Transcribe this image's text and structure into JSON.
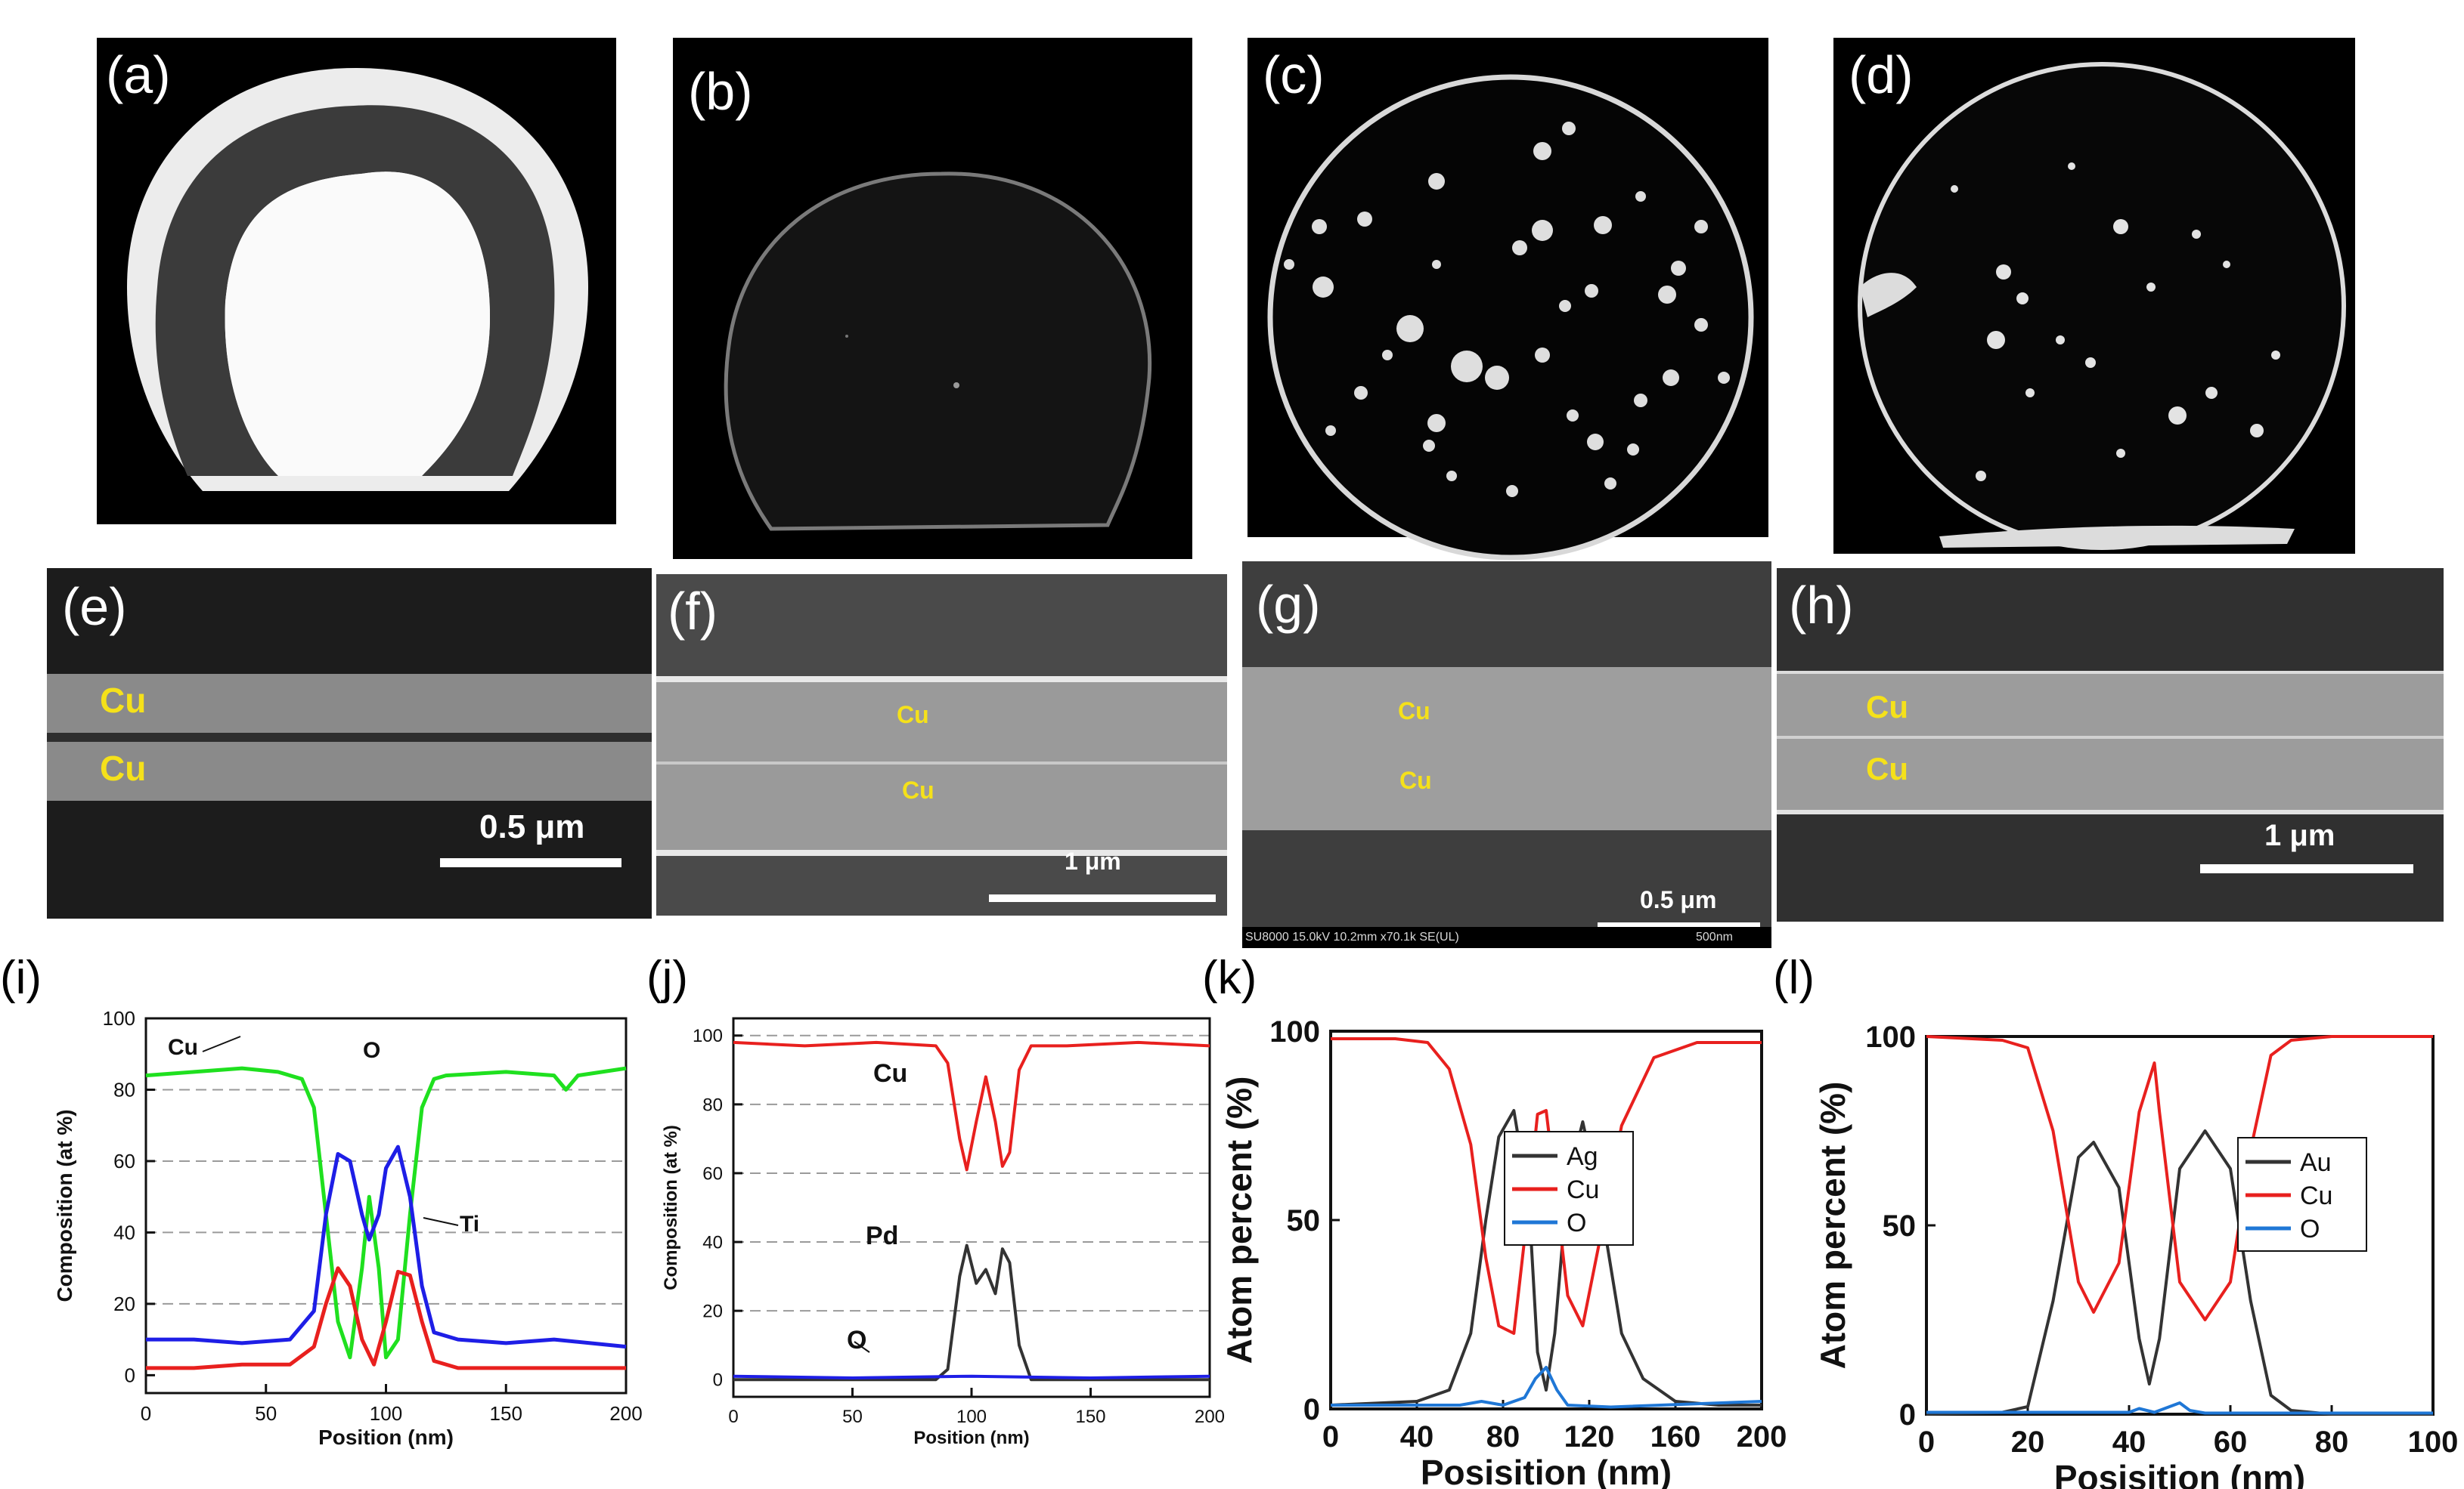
{
  "panels": {
    "a": {
      "label": "(a)"
    },
    "b": {
      "label": "(b)"
    },
    "c": {
      "label": "(c)"
    },
    "d": {
      "label": "(d)"
    },
    "e": {
      "label": "(e)",
      "cu_top": "Cu",
      "cu_bottom": "Cu",
      "scale": "0.5 μm"
    },
    "f": {
      "label": "(f)",
      "cu_top": "Cu",
      "cu_bottom": "Cu",
      "scale": "1 μm"
    },
    "g": {
      "label": "(g)",
      "cu_top": "Cu",
      "cu_bottom": "Cu",
      "scale": "0.5 μm",
      "footer_left": "SU8000 15.0kV 10.2mm x70.1k SE(UL)",
      "footer_right": "500nm"
    },
    "h": {
      "label": "(h)",
      "cu_top": "Cu",
      "cu_bottom": "Cu",
      "scale": "1 μm"
    },
    "i": {
      "label": "(i)"
    },
    "j": {
      "label": "(j)"
    },
    "k": {
      "label": "(k)"
    },
    "l": {
      "label": "(l)"
    }
  },
  "colors": {
    "cu_label": "#f5e11a",
    "red": "#e8201e",
    "green": "#1fe01f",
    "blue": "#1e1ee6",
    "black": "#333333",
    "lightblue": "#1f77d6"
  },
  "chart_data": [
    {
      "id": "i",
      "type": "line",
      "xlabel": "Position (nm)",
      "ylabel": "Composition (at %)",
      "xlim": [
        0,
        200
      ],
      "ylim": [
        -5,
        100
      ],
      "xticks": [
        0,
        50,
        100,
        150,
        200
      ],
      "yticks": [
        0,
        20,
        40,
        60,
        80,
        100
      ],
      "grid": "dashed horizontal",
      "annotations": [
        "Cu",
        "O",
        "Ti"
      ],
      "series": [
        {
          "name": "Cu",
          "color": "green",
          "x": [
            0,
            20,
            40,
            55,
            65,
            70,
            75,
            80,
            85,
            90,
            93,
            97,
            100,
            105,
            110,
            115,
            120,
            125,
            150,
            170,
            175,
            180,
            200
          ],
          "y": [
            84,
            85,
            86,
            85,
            83,
            75,
            45,
            15,
            5,
            30,
            50,
            30,
            5,
            10,
            45,
            75,
            83,
            84,
            85,
            84,
            80,
            84,
            86
          ]
        },
        {
          "name": "O",
          "color": "blue",
          "x": [
            0,
            20,
            40,
            60,
            70,
            75,
            80,
            85,
            90,
            93,
            97,
            100,
            105,
            110,
            115,
            120,
            130,
            150,
            170,
            200
          ],
          "y": [
            10,
            10,
            9,
            10,
            18,
            45,
            62,
            60,
            45,
            38,
            45,
            58,
            64,
            50,
            25,
            12,
            10,
            9,
            10,
            8
          ]
        },
        {
          "name": "Ti",
          "color": "red",
          "x": [
            0,
            20,
            40,
            60,
            70,
            75,
            80,
            85,
            90,
            95,
            100,
            105,
            110,
            115,
            120,
            130,
            150,
            200
          ],
          "y": [
            2,
            2,
            3,
            3,
            8,
            20,
            30,
            25,
            10,
            3,
            15,
            29,
            28,
            15,
            4,
            2,
            2,
            2
          ]
        }
      ]
    },
    {
      "id": "j",
      "type": "line",
      "xlabel": "Position (nm)",
      "ylabel": "Composition (at %)",
      "xlim": [
        0,
        200
      ],
      "ylim": [
        -5,
        105
      ],
      "xticks": [
        0,
        50,
        100,
        150,
        200
      ],
      "yticks": [
        0,
        20,
        40,
        60,
        80,
        100
      ],
      "grid": "dashed horizontal",
      "annotations": [
        "Cu",
        "Pd",
        "O"
      ],
      "series": [
        {
          "name": "Cu",
          "color": "red",
          "x": [
            0,
            30,
            60,
            85,
            90,
            95,
            98,
            102,
            106,
            110,
            113,
            116,
            120,
            125,
            140,
            170,
            200
          ],
          "y": [
            98,
            97,
            98,
            97,
            92,
            70,
            61,
            75,
            88,
            75,
            62,
            66,
            90,
            97,
            97,
            98,
            97
          ]
        },
        {
          "name": "Pd",
          "color": "black",
          "x": [
            0,
            85,
            90,
            95,
            98,
            102,
            106,
            110,
            113,
            116,
            120,
            125,
            200
          ],
          "y": [
            0,
            0,
            3,
            30,
            39,
            28,
            32,
            25,
            38,
            34,
            10,
            0,
            0
          ]
        },
        {
          "name": "O",
          "color": "blue",
          "x": [
            0,
            50,
            100,
            150,
            200
          ],
          "y": [
            1,
            0.5,
            1,
            0.5,
            1
          ]
        }
      ]
    },
    {
      "id": "k",
      "type": "line",
      "xlabel": "Posisition (nm)",
      "ylabel": "Atom percent (%)",
      "xlim": [
        0,
        200
      ],
      "ylim": [
        0,
        100
      ],
      "xticks": [
        0,
        40,
        80,
        120,
        160,
        200
      ],
      "yticks": [
        0,
        50,
        100
      ],
      "legend": [
        "Ag",
        "Cu",
        "O"
      ],
      "series": [
        {
          "name": "Ag",
          "color": "black",
          "x": [
            0,
            40,
            55,
            65,
            72,
            78,
            85,
            92,
            96,
            100,
            104,
            110,
            117,
            125,
            135,
            145,
            160,
            180,
            200
          ],
          "y": [
            1,
            2,
            5,
            20,
            50,
            72,
            79,
            55,
            15,
            5,
            20,
            60,
            76,
            55,
            20,
            8,
            2,
            1,
            1
          ]
        },
        {
          "name": "Cu",
          "color": "red",
          "x": [
            0,
            30,
            45,
            55,
            65,
            72,
            78,
            85,
            90,
            96,
            100,
            104,
            110,
            117,
            125,
            135,
            150,
            170,
            200
          ],
          "y": [
            98,
            98,
            97,
            90,
            70,
            40,
            22,
            20,
            45,
            78,
            79,
            60,
            30,
            22,
            45,
            75,
            93,
            97,
            97
          ]
        },
        {
          "name": "O",
          "color": "lightblue",
          "x": [
            0,
            40,
            60,
            70,
            80,
            90,
            95,
            100,
            105,
            110,
            130,
            200
          ],
          "y": [
            1,
            1,
            1,
            2,
            1,
            3,
            8,
            11,
            5,
            1,
            0.5,
            2
          ]
        }
      ]
    },
    {
      "id": "l",
      "type": "line",
      "xlabel": "Posisition (nm)",
      "ylabel": "Atom percent (%)",
      "xlim": [
        0,
        100
      ],
      "ylim": [
        0,
        100
      ],
      "xticks": [
        0,
        20,
        40,
        60,
        80,
        100
      ],
      "yticks": [
        0,
        50,
        100
      ],
      "legend": [
        "Au",
        "Cu",
        "O"
      ],
      "series": [
        {
          "name": "Au",
          "color": "black",
          "x": [
            0,
            15,
            20,
            25,
            30,
            33,
            38,
            42,
            44,
            46,
            50,
            55,
            60,
            64,
            68,
            72,
            80,
            100
          ],
          "y": [
            0,
            0.5,
            2,
            30,
            68,
            72,
            60,
            20,
            8,
            20,
            65,
            75,
            65,
            30,
            5,
            1,
            0,
            0
          ]
        },
        {
          "name": "Cu",
          "color": "red",
          "x": [
            0,
            15,
            20,
            25,
            30,
            33,
            38,
            42,
            45,
            46,
            50,
            55,
            60,
            64,
            68,
            72,
            80,
            100
          ],
          "y": [
            100,
            99,
            97,
            75,
            35,
            27,
            40,
            80,
            93,
            80,
            35,
            25,
            35,
            70,
            95,
            99,
            100,
            100
          ]
        },
        {
          "name": "O",
          "color": "lightblue",
          "x": [
            0,
            40,
            42,
            45,
            48,
            50,
            52,
            55,
            100
          ],
          "y": [
            0.5,
            0.5,
            1.5,
            0.5,
            2,
            3,
            1,
            0.3,
            0.3
          ]
        }
      ]
    }
  ]
}
